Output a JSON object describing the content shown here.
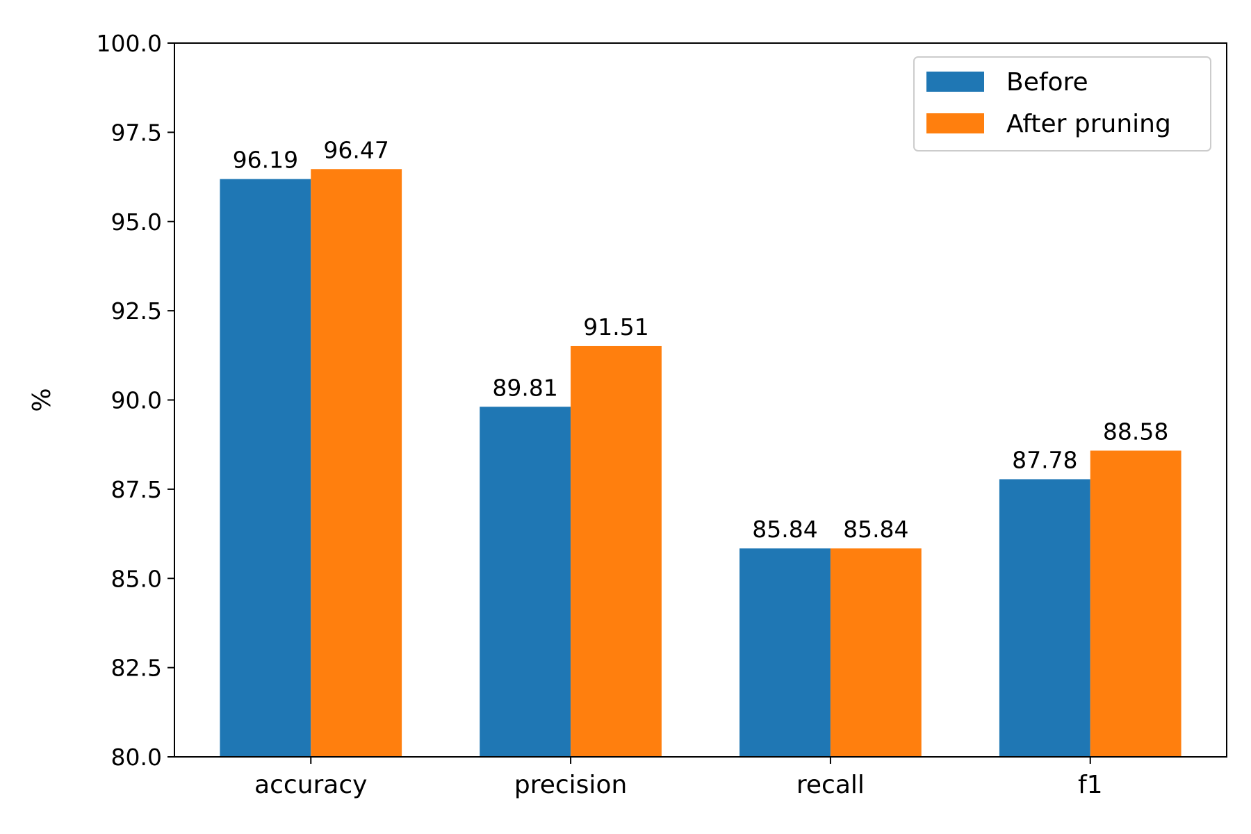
{
  "chart_data": {
    "type": "bar",
    "categories": [
      "accuracy",
      "precision",
      "recall",
      "f1"
    ],
    "series": [
      {
        "name": "Before",
        "color": "#1f77b4",
        "values": [
          96.19,
          89.81,
          85.84,
          87.78
        ]
      },
      {
        "name": "After pruning",
        "color": "#ff7f0e",
        "values": [
          96.47,
          91.51,
          85.84,
          88.58
        ]
      }
    ],
    "value_labels": {
      "Before": [
        "96.19",
        "89.81",
        "85.84",
        "87.78"
      ],
      "After pruning": [
        "96.47",
        "91.51",
        "85.84",
        "88.58"
      ]
    },
    "title": "",
    "xlabel": "",
    "ylabel": "%",
    "ylim": [
      80,
      100
    ],
    "yticks": [
      "80.0",
      "82.5",
      "85.0",
      "87.5",
      "90.0",
      "92.5",
      "95.0",
      "97.5",
      "100.0"
    ],
    "grid": false,
    "legend_position": "top-right"
  }
}
